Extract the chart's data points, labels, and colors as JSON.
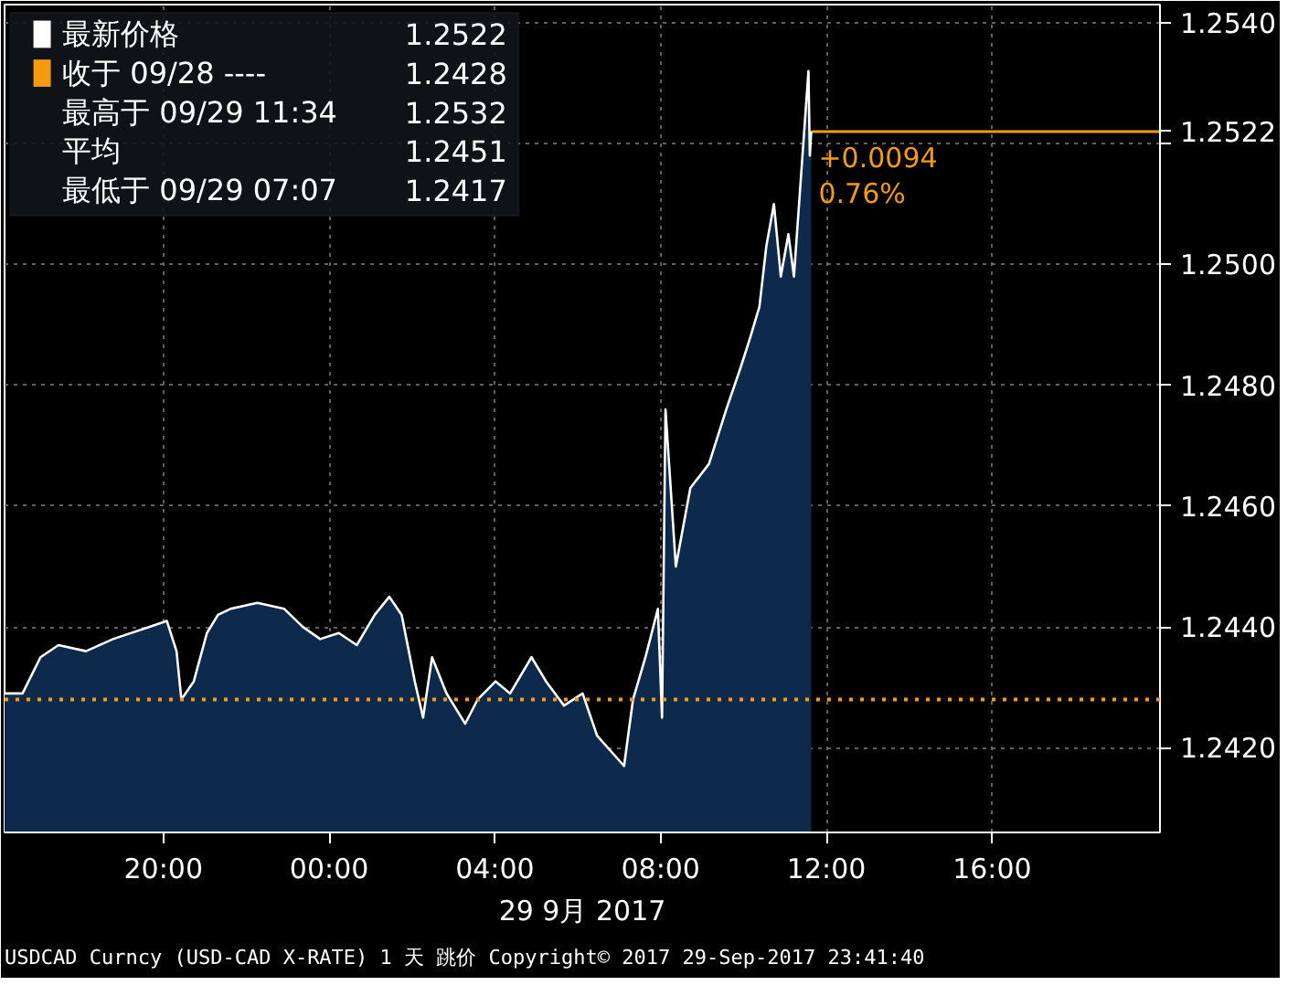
{
  "chart_data": {
    "type": "area",
    "xlabel": "29 9月 2017",
    "x": [
      "2017-09-28T16:10",
      "2017-09-28T16:36",
      "2017-09-28T17:02",
      "2017-09-28T17:28",
      "2017-09-28T18:08",
      "2017-09-28T18:47",
      "2017-09-28T19:39",
      "2017-09-28T20:05",
      "2017-09-28T20:19",
      "2017-09-28T20:26",
      "2017-09-28T20:44",
      "2017-09-28T21:03",
      "2017-09-28T21:19",
      "2017-09-28T21:37",
      "2017-09-28T22:16",
      "2017-09-28T22:55",
      "2017-09-28T23:22",
      "2017-09-28T23:47",
      "2017-09-29T00:14",
      "2017-09-29T00:40",
      "2017-09-29T01:06",
      "2017-09-29T01:27",
      "2017-09-29T01:45",
      "2017-09-29T02:04",
      "2017-09-29T02:16",
      "2017-09-29T02:29",
      "2017-09-29T02:50",
      "2017-09-29T03:17",
      "2017-09-29T03:35",
      "2017-09-29T04:01",
      "2017-09-29T04:22",
      "2017-09-29T04:53",
      "2017-09-29T05:14",
      "2017-09-29T05:40",
      "2017-09-29T06:07",
      "2017-09-29T06:28",
      "2017-09-29T07:07",
      "2017-09-29T07:20",
      "2017-09-29T07:38",
      "2017-09-29T07:56",
      "2017-09-29T08:02",
      "2017-09-29T08:07",
      "2017-09-29T08:22",
      "2017-09-29T08:43",
      "2017-09-29T09:10",
      "2017-09-29T09:35",
      "2017-09-29T09:56",
      "2017-09-29T10:10",
      "2017-09-29T10:23",
      "2017-09-29T10:33",
      "2017-09-29T10:44",
      "2017-09-29T10:54",
      "2017-09-29T11:05",
      "2017-09-29T11:13",
      "2017-09-29T11:34",
      "2017-09-29T11:36",
      "2017-09-29T11:38"
    ],
    "series": [
      {
        "name": "最新价格",
        "color": "#ffffff",
        "values": [
          1.2429,
          1.2429,
          1.2435,
          1.2437,
          1.2436,
          1.2438,
          1.244,
          1.2441,
          1.2436,
          1.2428,
          1.2431,
          1.2439,
          1.2442,
          1.2443,
          1.2444,
          1.2443,
          1.244,
          1.2438,
          1.2439,
          1.2437,
          1.2442,
          1.2445,
          1.2442,
          1.2431,
          1.2425,
          1.2435,
          1.2429,
          1.2424,
          1.2428,
          1.2431,
          1.2429,
          1.2435,
          1.2431,
          1.2427,
          1.2429,
          1.2422,
          1.2417,
          1.2428,
          1.2435,
          1.2443,
          1.2425,
          1.2476,
          1.245,
          1.2463,
          1.2467,
          1.2476,
          1.2483,
          1.2488,
          1.2493,
          1.2503,
          1.251,
          1.2498,
          1.2505,
          1.2498,
          1.2532,
          1.2518,
          1.2522
        ]
      }
    ],
    "xlim": [
      "2017-09-28T16:10",
      "2017-09-29T20:03"
    ],
    "xticks": [
      {
        "value": "2017-09-28T20:00",
        "label": "20:00"
      },
      {
        "value": "2017-09-29T00:00",
        "label": "00:00"
      },
      {
        "value": "2017-09-29T04:00",
        "label": "04:00"
      },
      {
        "value": "2017-09-29T08:00",
        "label": "08:00"
      },
      {
        "value": "2017-09-29T12:00",
        "label": "12:00"
      },
      {
        "value": "2017-09-29T16:00",
        "label": "16:00"
      }
    ],
    "ylim": [
      1.2406,
      1.2543
    ],
    "yticks": [
      {
        "value": 1.242,
        "label": "1.2420"
      },
      {
        "value": 1.244,
        "label": "1.2440"
      },
      {
        "value": 1.246,
        "label": "1.2460"
      },
      {
        "value": 1.248,
        "label": "1.2480"
      },
      {
        "value": 1.25,
        "label": "1.2500"
      },
      {
        "value": 1.252,
        "label": null
      },
      {
        "value": 1.254,
        "label": "1.2540"
      }
    ],
    "grid": true,
    "legend": "top left",
    "ref_lines": [
      {
        "axis": "y",
        "value": 1.2428,
        "label": "收于 09/28 ----",
        "color": "#f39c12",
        "line_style": "dotted"
      },
      {
        "axis": "y",
        "value": 1.2522,
        "label": "1.2522",
        "color": "#f39c12",
        "line_style": "solid"
      }
    ],
    "annotations": [
      "1.2522",
      "1.2428",
      "最高于 09/29 11:34 1.2532",
      "平均 1.2451",
      "最低于 09/29 07:07 1.2417",
      {
        "text": "+0.0094",
        "x": "2017-09-29T11:38",
        "y": 1.2522
      },
      {
        "text": "0.76%",
        "x": "2017-09-29T11:38",
        "y": 1.2522
      },
      "USDCAD Curncy (USD-CAD X-RATE) 1 天  跳价 Copyright© 2017 29-Sep-2017 23:41:40"
    ]
  }
}
